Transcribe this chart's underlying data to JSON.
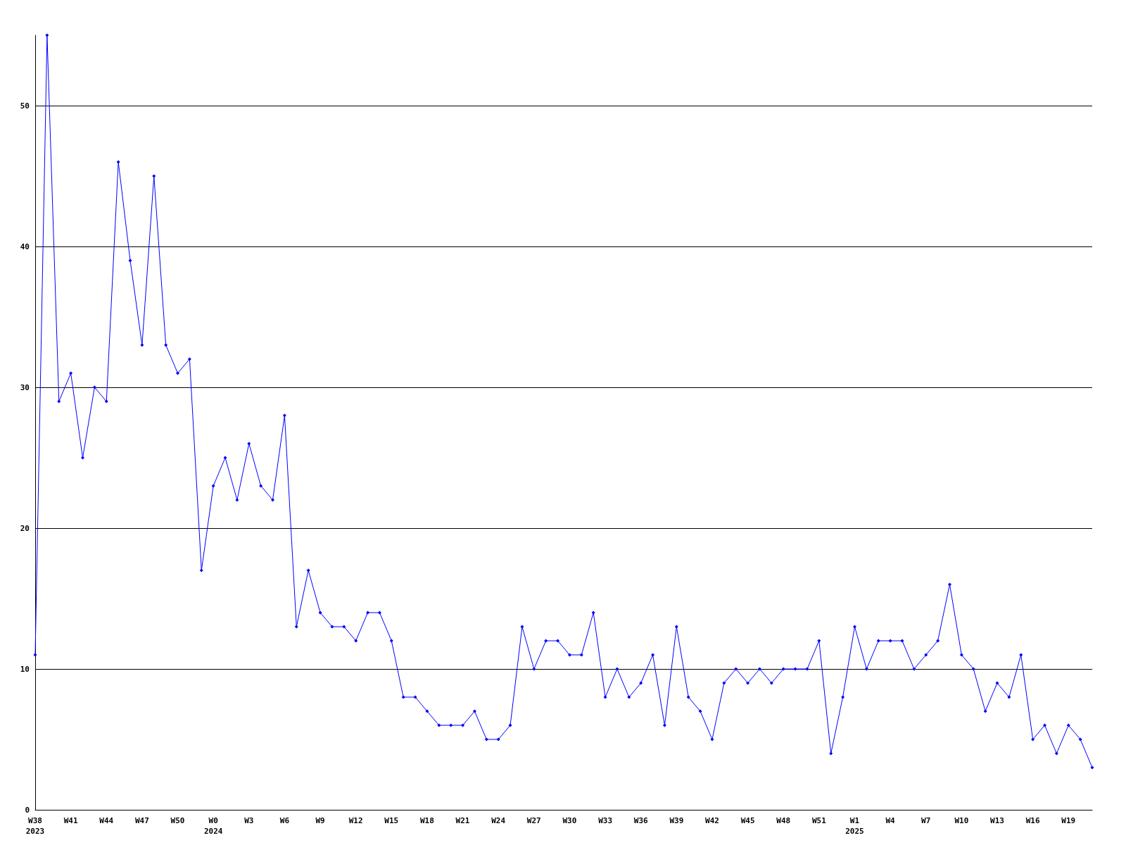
{
  "chart_data": {
    "type": "line",
    "categories": [
      "W38\n2023",
      null,
      null,
      "W41",
      null,
      null,
      "W44",
      null,
      null,
      "W47",
      null,
      null,
      "W50",
      null,
      null,
      "W0\n2024",
      null,
      null,
      "W3",
      null,
      null,
      "W6",
      null,
      null,
      "W9",
      null,
      null,
      "W12",
      null,
      null,
      "W15",
      null,
      null,
      "W18",
      null,
      null,
      "W21",
      null,
      null,
      "W24",
      null,
      null,
      "W27",
      null,
      null,
      "W30",
      null,
      null,
      "W33",
      null,
      null,
      "W36",
      null,
      null,
      "W39",
      null,
      null,
      "W42",
      null,
      null,
      "W45",
      null,
      null,
      "W48",
      null,
      null,
      "W51",
      null,
      null,
      "W1\n2025",
      null,
      null,
      "W4",
      null,
      null,
      "W7",
      null,
      null,
      "W10",
      null,
      null,
      "W13",
      null,
      null,
      "W16",
      null,
      null,
      "W19",
      null,
      null
    ],
    "series": [
      {
        "color": "#0000ff",
        "values": [
          11,
          55,
          29,
          31,
          25,
          30,
          29,
          46,
          39,
          33,
          45,
          33,
          31,
          32,
          17,
          23,
          25,
          22,
          26,
          23,
          22,
          28,
          13,
          17,
          14,
          13,
          13,
          12,
          14,
          14,
          12,
          8,
          8,
          7,
          6,
          6,
          6,
          7,
          5,
          5,
          6,
          13,
          10,
          12,
          12,
          11,
          11,
          14,
          8,
          10,
          8,
          9,
          11,
          6,
          13,
          8,
          7,
          5,
          9,
          10,
          9,
          10,
          9,
          10,
          10,
          10,
          12,
          4,
          8,
          13,
          10,
          12,
          12,
          12,
          10,
          11,
          12,
          16,
          11,
          10,
          7,
          9,
          8,
          11,
          5,
          6,
          4,
          6,
          5,
          3
        ]
      }
    ],
    "ylim": [
      0,
      55
    ],
    "yticks": [
      0,
      10,
      20,
      30,
      40,
      50
    ],
    "grid": "y",
    "marker": "diamond",
    "line_style": "solid"
  }
}
